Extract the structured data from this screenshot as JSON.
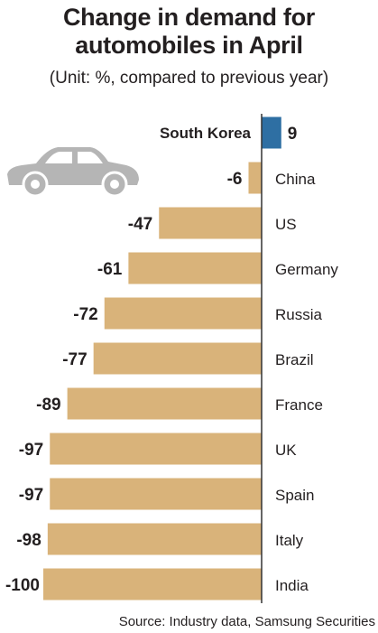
{
  "chart_data": {
    "type": "bar",
    "orientation": "horizontal",
    "title": "Change in demand for automobiles in April",
    "title_lines": [
      "Change in demand for",
      "automobiles in April"
    ],
    "subtitle": "(Unit: %, compared to previous year)",
    "source": "Source: Industry data, Samsung Securities",
    "categories": [
      "South Korea",
      "China",
      "US",
      "Germany",
      "Russia",
      "Brazil",
      "France",
      "UK",
      "Spain",
      "Italy",
      "India"
    ],
    "values": [
      9,
      -6,
      -47,
      -61,
      -72,
      -77,
      -89,
      -97,
      -97,
      -98,
      -100
    ],
    "xlim": [
      -100,
      10
    ],
    "grid": false,
    "legend": "none",
    "colors": {
      "positive": "#2e6fa3",
      "negative": "#d9b37a",
      "axis": "#333333",
      "car": "#b5b5b5"
    },
    "icon": "car-icon"
  }
}
